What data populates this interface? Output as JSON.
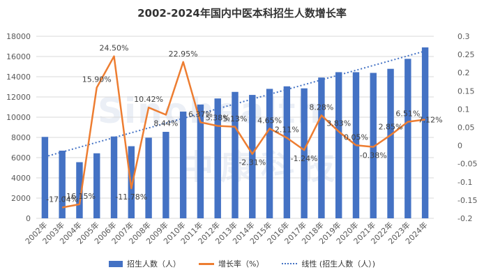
{
  "chart_data": {
    "type": "bar",
    "title": "2002-2024年国内中医本科招生人数增长率",
    "categories": [
      "2002年",
      "2003年",
      "2004年",
      "2005年",
      "2006年",
      "2007年",
      "2008年",
      "2009年",
      "2010年",
      "2011年",
      "2012年",
      "2013年",
      "2014年",
      "2015年",
      "2016年",
      "2017年",
      "2018年",
      "2019年",
      "2020年",
      "2021年",
      "2022年",
      "2023年",
      "2024年"
    ],
    "series": [
      {
        "name": "招生人数（人）",
        "type": "bar",
        "axis": "left",
        "color": "#4472C4",
        "values": [
          8050,
          6690,
          5550,
          6430,
          8090,
          7130,
          7970,
          8550,
          10550,
          11250,
          11850,
          12500,
          12200,
          12800,
          13050,
          12850,
          13920,
          14450,
          14450,
          14380,
          14780,
          15770,
          16900
        ]
      },
      {
        "name": "增长率（%）",
        "type": "line",
        "axis": "right",
        "color": "#ED7D31",
        "values": [
          null,
          -0.1704,
          -0.1615,
          0.159,
          0.245,
          -0.1178,
          0.1042,
          0.0844,
          0.2295,
          0.0637,
          0.0538,
          0.0513,
          -0.0231,
          0.0465,
          0.0211,
          -0.0124,
          0.0828,
          0.0383,
          0.0005,
          -0.0038,
          0.0285,
          0.0651,
          0.0712
        ],
        "labels": [
          "",
          "-17.04%",
          "-16.15%",
          "15.90%",
          "24.50%",
          "-11.78%",
          "10.42%",
          "8.44%",
          "22.95%",
          "6.37%",
          "5.38%",
          "5.13%",
          "-2.31%",
          "4.65%",
          "2.11%",
          "-1.24%",
          "8.28%",
          "3.83%",
          "0.05%",
          "-0.38%",
          "2.85%",
          "6.51%",
          "7.12%"
        ]
      },
      {
        "name": "线性 (招生人数（人）)",
        "type": "trendline",
        "axis": "left",
        "color": "#4472C4"
      }
    ],
    "ylim_left": [
      0,
      18000
    ],
    "yticks_left": [
      "0",
      "2000",
      "4000",
      "6000",
      "8000",
      "10000",
      "12000",
      "14000",
      "16000",
      "18000"
    ],
    "ylim_right": [
      -0.2,
      0.3
    ],
    "yticks_right": [
      "-0.2",
      "-0.15",
      "-0.1",
      "-0.05",
      "0",
      "0.05",
      "0.1",
      "0.15",
      "0.2",
      "0.25",
      "0.3"
    ],
    "grid": true,
    "legend_position": "bottom"
  },
  "watermark": {
    "line1": "Sinohealth",
    "line2": "中康科技"
  }
}
